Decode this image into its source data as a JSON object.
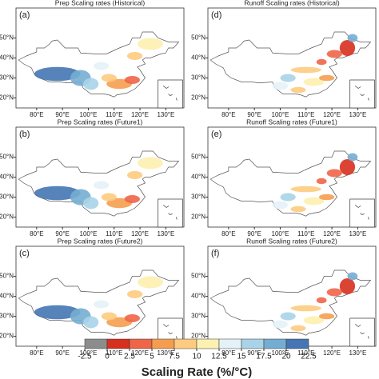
{
  "axes": {
    "xlim": [
      72,
      137
    ],
    "ylim": [
      15,
      65
    ],
    "xticks": [
      {
        "value": 80,
        "label": "80°E"
      },
      {
        "value": 90,
        "label": "90°E"
      },
      {
        "value": 100,
        "label": "100°E"
      },
      {
        "value": 110,
        "label": "110°E"
      },
      {
        "value": 120,
        "label": "120°E"
      },
      {
        "value": 130,
        "label": "130°E"
      }
    ],
    "yticks": [
      {
        "value": 20,
        "label": "20°N"
      },
      {
        "value": 30,
        "label": "30°N"
      },
      {
        "value": 40,
        "label": "40°N"
      },
      {
        "value": 50,
        "label": "50°N"
      }
    ]
  },
  "panels": [
    {
      "label": "(a)",
      "title": "Prep Scaling rates (Historical)"
    },
    {
      "label": "(d)",
      "title": "Runoff Scaling rates (Historical)"
    },
    {
      "label": "(b)",
      "title": "Prep Scaling rates (Future1)"
    },
    {
      "label": "(e)",
      "title": "Runoff Scaling rates (Future1)"
    },
    {
      "label": "(c)",
      "title": "Prep Scaling rates (Future2)"
    },
    {
      "label": "(f)",
      "title": "Runoff Scaling rates (Future2)"
    }
  ],
  "colorbar": {
    "ticks": [
      -2.5,
      0,
      2.5,
      5,
      7.5,
      10,
      12.5,
      15,
      17.5,
      20,
      22.5
    ],
    "colors": [
      "#8c8c8c",
      "#d7301f",
      "#ef6548",
      "#f59d4f",
      "#fdcb7f",
      "#fdf0b0",
      "#e4f2f7",
      "#a9d3e8",
      "#74add1",
      "#4575b4"
    ],
    "label": "Scaling Rate (%/°C)"
  }
}
